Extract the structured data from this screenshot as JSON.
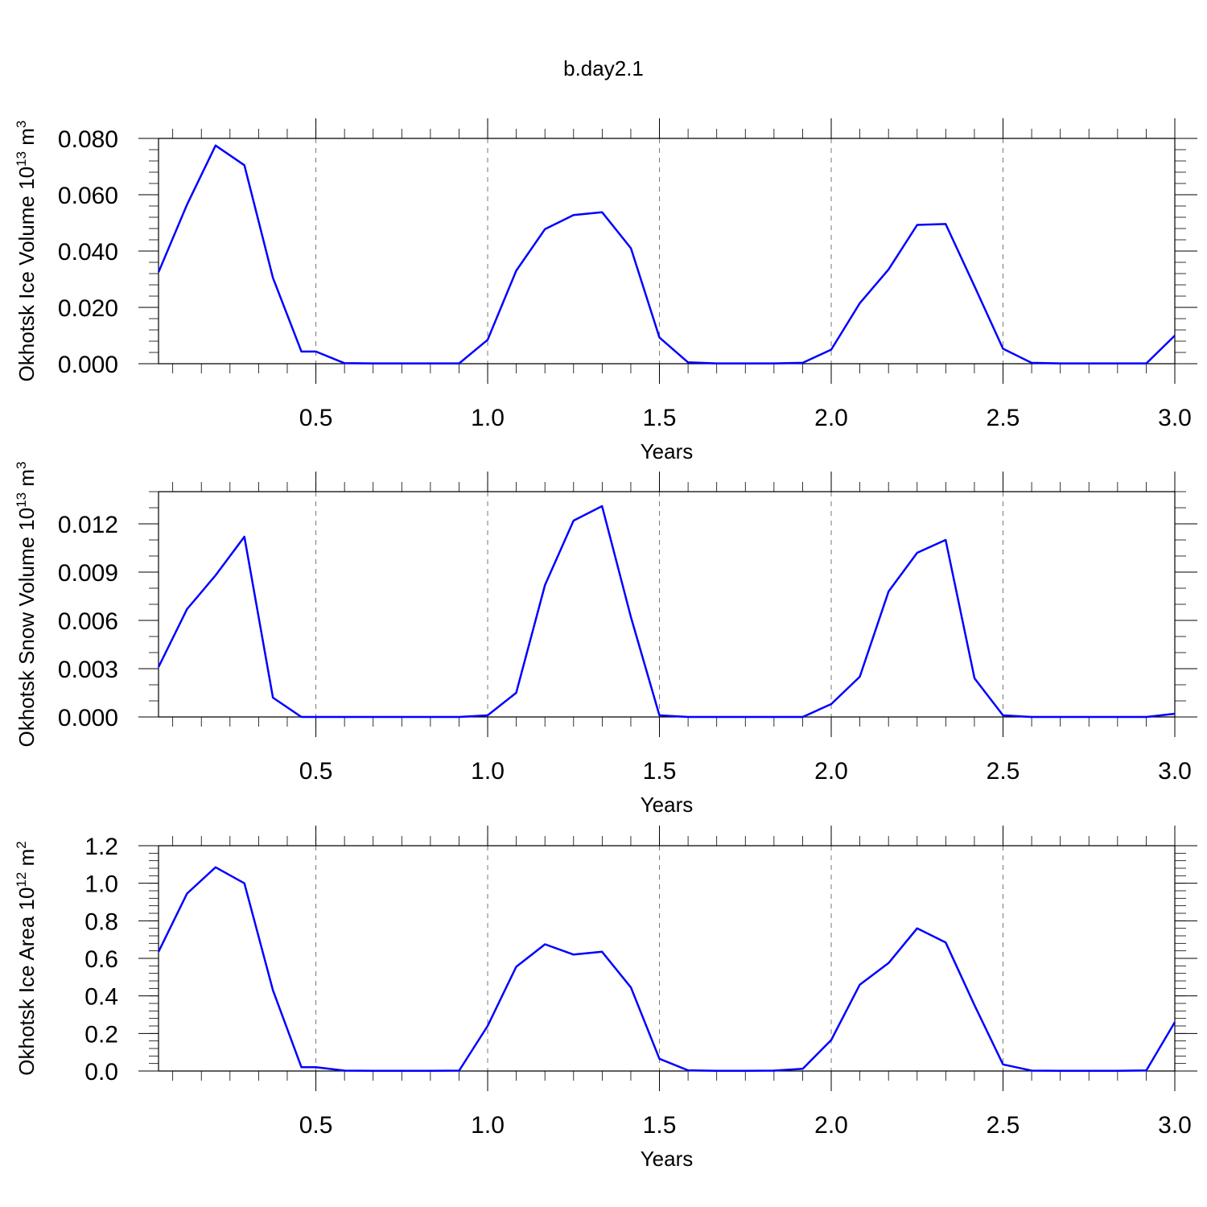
{
  "figure": {
    "title": "b.day2.1"
  },
  "style": {
    "line_color": "#0000ff",
    "axis_color": "#000000",
    "grid_color": "#777777"
  },
  "chart_data": [
    {
      "type": "line",
      "title": "",
      "xlabel": "Years",
      "ylabel": {
        "text": "Okhotsk Ice Volume 10",
        "sup": "13",
        "unit": "m",
        "unit_sup": "3"
      },
      "xlim": [
        0.042,
        3.0
      ],
      "ylim": [
        0,
        0.08
      ],
      "xticks": [
        0.5,
        1.0,
        1.5,
        2.0,
        2.5,
        3.0
      ],
      "xtick_labels": [
        "0.5",
        "1.0",
        "1.5",
        "2.0",
        "2.5",
        "3.0"
      ],
      "yticks": [
        0,
        0.02,
        0.04,
        0.06,
        0.08
      ],
      "ytick_labels": [
        "0.000",
        "0.020",
        "0.040",
        "0.060",
        "0.080"
      ],
      "y_minor_step": 0.004,
      "grid": "vertical-dashed",
      "series": [
        {
          "x": [
            0.042,
            0.125,
            0.208,
            0.292,
            0.375,
            0.458,
            0.5,
            0.583,
            0.667,
            0.75,
            0.833,
            0.917,
            1.0,
            1.083,
            1.167,
            1.25,
            1.333,
            1.417,
            1.5,
            1.583,
            1.667,
            1.75,
            1.833,
            1.917,
            2.0,
            2.083,
            2.167,
            2.25,
            2.333,
            2.417,
            2.5,
            2.583,
            2.667,
            2.75,
            2.833,
            2.917,
            3.0
          ],
          "values": [
            0.0325,
            0.0565,
            0.0775,
            0.0705,
            0.0305,
            0.0043,
            0.0043,
            0.0002,
            0.0001,
            0.0001,
            0.0001,
            0.0001,
            0.0085,
            0.033,
            0.0478,
            0.0528,
            0.0538,
            0.041,
            0.0093,
            0.0005,
            0.0001,
            0.0001,
            0.0001,
            0.0003,
            0.005,
            0.0215,
            0.0335,
            0.0493,
            0.0496,
            0.0275,
            0.0053,
            0.0003,
            0.0001,
            0.0001,
            0.0001,
            0.0001,
            0.01
          ]
        }
      ]
    },
    {
      "type": "line",
      "title": "",
      "xlabel": "Years",
      "ylabel": {
        "text": "Okhotsk Snow Volume 10",
        "sup": "13",
        "unit": "m",
        "unit_sup": "3"
      },
      "xlim": [
        0.042,
        3.0
      ],
      "ylim": [
        0,
        0.014
      ],
      "xticks": [
        0.5,
        1.0,
        1.5,
        2.0,
        2.5,
        3.0
      ],
      "xtick_labels": [
        "0.5",
        "1.0",
        "1.5",
        "2.0",
        "2.5",
        "3.0"
      ],
      "yticks": [
        0,
        0.003,
        0.006,
        0.009,
        0.012
      ],
      "ytick_labels": [
        "0.000",
        "0.003",
        "0.006",
        "0.009",
        "0.012"
      ],
      "y_minor_step": 0.001,
      "grid": "vertical-dashed",
      "series": [
        {
          "x": [
            0.042,
            0.125,
            0.208,
            0.292,
            0.375,
            0.458,
            0.5,
            0.583,
            0.667,
            0.75,
            0.833,
            0.917,
            1.0,
            1.083,
            1.167,
            1.25,
            1.333,
            1.417,
            1.5,
            1.583,
            1.667,
            1.75,
            1.833,
            1.917,
            2.0,
            2.083,
            2.167,
            2.25,
            2.333,
            2.417,
            2.5,
            2.583,
            2.667,
            2.75,
            2.833,
            2.917,
            3.0
          ],
          "values": [
            0.0031,
            0.0067,
            0.0088,
            0.0112,
            0.0012,
            0.0,
            0.0,
            0.0,
            0.0,
            0.0,
            0.0,
            0.0,
            0.0001,
            0.0015,
            0.0082,
            0.0122,
            0.0131,
            0.0062,
            0.0001,
            0.0,
            0.0,
            0.0,
            0.0,
            0.0,
            0.0008,
            0.0025,
            0.0078,
            0.0102,
            0.011,
            0.0024,
            0.0001,
            0.0,
            0.0,
            0.0,
            0.0,
            0.0,
            0.0002
          ]
        }
      ]
    },
    {
      "type": "line",
      "title": "",
      "xlabel": "Years",
      "ylabel": {
        "text": "Okhotsk Ice Area 10",
        "sup": "12",
        "unit": "m",
        "unit_sup": "2"
      },
      "xlim": [
        0.042,
        3.0
      ],
      "ylim": [
        0,
        1.2
      ],
      "xticks": [
        0.5,
        1.0,
        1.5,
        2.0,
        2.5,
        3.0
      ],
      "xtick_labels": [
        "0.5",
        "1.0",
        "1.5",
        "2.0",
        "2.5",
        "3.0"
      ],
      "yticks": [
        0,
        0.2,
        0.4,
        0.6,
        0.8,
        1.0,
        1.2
      ],
      "ytick_labels": [
        "0.0",
        "0.2",
        "0.4",
        "0.6",
        "0.8",
        "1.0",
        "1.2"
      ],
      "y_minor_step": 0.04,
      "grid": "vertical-dashed",
      "series": [
        {
          "x": [
            0.042,
            0.125,
            0.208,
            0.292,
            0.375,
            0.458,
            0.5,
            0.583,
            0.667,
            0.75,
            0.833,
            0.917,
            1.0,
            1.083,
            1.167,
            1.25,
            1.333,
            1.417,
            1.5,
            1.583,
            1.667,
            1.75,
            1.833,
            1.917,
            2.0,
            2.083,
            2.167,
            2.25,
            2.333,
            2.417,
            2.5,
            2.583,
            2.667,
            2.75,
            2.833,
            2.917,
            3.0
          ],
          "values": [
            0.635,
            0.945,
            1.085,
            1.0,
            0.43,
            0.02,
            0.02,
            0.002,
            0.001,
            0.001,
            0.001,
            0.002,
            0.24,
            0.555,
            0.675,
            0.62,
            0.635,
            0.445,
            0.065,
            0.004,
            0.001,
            0.001,
            0.002,
            0.012,
            0.165,
            0.46,
            0.575,
            0.76,
            0.685,
            0.35,
            0.035,
            0.002,
            0.001,
            0.001,
            0.001,
            0.003,
            0.26
          ]
        }
      ]
    }
  ]
}
